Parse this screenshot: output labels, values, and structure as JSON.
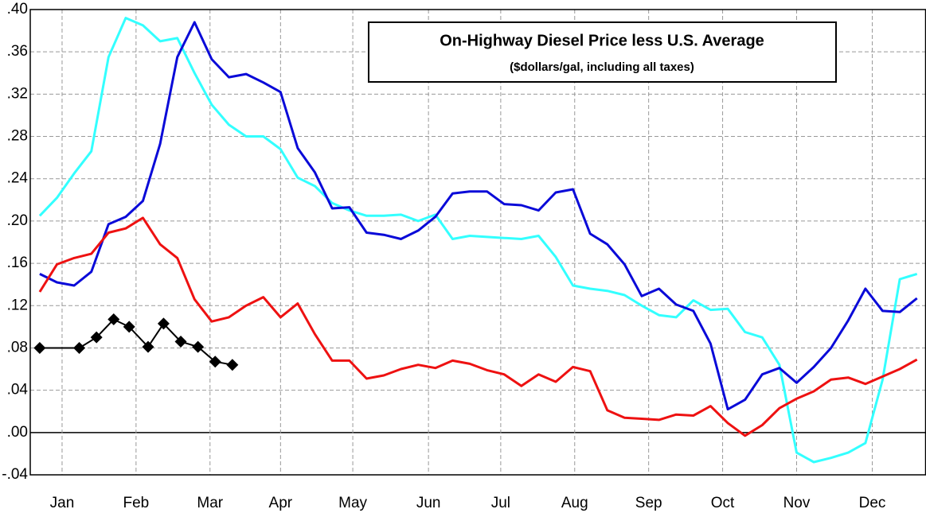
{
  "chart_data": {
    "type": "line",
    "title": "On-Highway Diesel Price  less U.S. Average",
    "subtitle": "($dollars/gal, including all taxes)",
    "x": [
      0,
      1,
      2,
      3,
      4,
      5,
      6,
      7,
      8,
      9,
      10,
      11,
      12,
      13,
      14,
      15,
      16,
      17,
      18,
      19,
      20,
      21,
      22,
      23,
      24,
      25,
      26,
      27,
      28,
      29,
      30,
      31,
      32,
      33,
      34,
      35,
      36,
      37,
      38,
      39,
      40,
      41,
      42,
      43,
      44,
      45,
      46,
      47,
      48,
      49,
      50,
      51
    ],
    "xlim": [
      -0.55,
      51.5
    ],
    "xticks": [
      {
        "value": 1.3,
        "label": "Jan"
      },
      {
        "value": 5.6,
        "label": "Feb"
      },
      {
        "value": 9.9,
        "label": "Mar"
      },
      {
        "value": 14.0,
        "label": "Apr"
      },
      {
        "value": 18.2,
        "label": "May"
      },
      {
        "value": 22.6,
        "label": "Jun"
      },
      {
        "value": 26.8,
        "label": "Jul"
      },
      {
        "value": 31.1,
        "label": "Aug"
      },
      {
        "value": 35.4,
        "label": "Sep"
      },
      {
        "value": 39.7,
        "label": "Oct"
      },
      {
        "value": 44.0,
        "label": "Nov"
      },
      {
        "value": 48.4,
        "label": "Dec"
      }
    ],
    "ylim": [
      -0.04,
      0.4
    ],
    "yticks": [
      {
        "value": -0.04,
        "label": "-.04"
      },
      {
        "value": 0,
        "label": ".00"
      },
      {
        "value": 0.04,
        "label": ".04"
      },
      {
        "value": 0.08,
        "label": ".08"
      },
      {
        "value": 0.12,
        "label": ".12"
      },
      {
        "value": 0.16,
        "label": ".16"
      },
      {
        "value": 0.2,
        "label": ".20"
      },
      {
        "value": 0.24,
        "label": ".24"
      },
      {
        "value": 0.28,
        "label": ".28"
      },
      {
        "value": 0.32,
        "label": ".32"
      },
      {
        "value": 0.36,
        "label": ".36"
      },
      {
        "value": 0.4,
        "label": ".40"
      }
    ],
    "grid": true,
    "series": [
      {
        "color": "#33ffff",
        "values": [
          0.205,
          0.222,
          0.245,
          0.266,
          0.355,
          0.392,
          0.385,
          0.37,
          0.373,
          0.34,
          0.31,
          0.291,
          0.28,
          0.28,
          0.268,
          0.241,
          0.233,
          0.217,
          0.21,
          0.205,
          0.205,
          0.206,
          0.2,
          0.206,
          0.183,
          0.186,
          0.185,
          0.184,
          0.183,
          0.186,
          0.166,
          0.139,
          0.136,
          0.134,
          0.13,
          0.12,
          0.111,
          0.109,
          0.125,
          0.116,
          0.117,
          0.095,
          0.09,
          0.064,
          -0.019,
          -0.028,
          -0.024,
          -0.019,
          -0.01,
          0.05,
          0.145,
          0.15
        ]
      },
      {
        "color": "#0a0ad8",
        "values": [
          0.15,
          0.142,
          0.139,
          0.152,
          0.197,
          0.204,
          0.219,
          0.273,
          0.355,
          0.388,
          0.353,
          0.336,
          0.339,
          0.331,
          0.322,
          0.269,
          0.246,
          0.212,
          0.213,
          0.189,
          0.187,
          0.183,
          0.191,
          0.204,
          0.226,
          0.228,
          0.228,
          0.216,
          0.215,
          0.21,
          0.227,
          0.23,
          0.188,
          0.178,
          0.159,
          0.129,
          0.136,
          0.121,
          0.115,
          0.084,
          0.022,
          0.031,
          0.055,
          0.061,
          0.047,
          0.062,
          0.08,
          0.106,
          0.136,
          0.115,
          0.114,
          0.127
        ]
      },
      {
        "color": "#ee1111",
        "values": [
          0.133,
          0.159,
          0.165,
          0.169,
          0.189,
          0.193,
          0.203,
          0.178,
          0.165,
          0.126,
          0.105,
          0.109,
          0.12,
          0.128,
          0.109,
          0.122,
          0.093,
          0.068,
          0.068,
          0.051,
          0.054,
          0.06,
          0.064,
          0.061,
          0.068,
          0.065,
          0.059,
          0.055,
          0.044,
          0.055,
          0.048,
          0.062,
          0.058,
          0.021,
          0.014,
          0.013,
          0.012,
          0.017,
          0.016,
          0.025,
          0.009,
          -0.003,
          0.007,
          0.023,
          0.032,
          0.039,
          0.05,
          0.052,
          0.046,
          0.053,
          0.06,
          0.069
        ]
      },
      {
        "color": "#000000",
        "marker": "diamond",
        "x": [
          0,
          2.3,
          3.3,
          4.3,
          5.2,
          6.3,
          7.2,
          8.2,
          9.2,
          10.2,
          11.2
        ],
        "values": [
          0.08,
          0.08,
          0.09,
          0.107,
          0.1,
          0.081,
          0.103,
          0.086,
          0.081,
          0.067,
          0.064
        ]
      }
    ]
  }
}
